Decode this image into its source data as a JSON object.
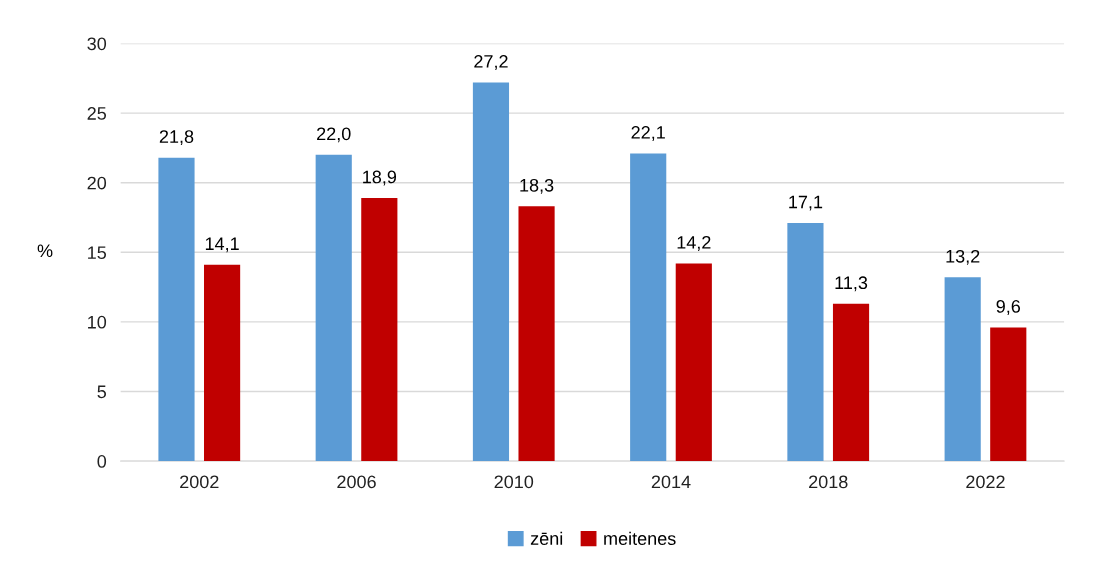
{
  "chart_data": {
    "type": "bar",
    "ylabel": "%",
    "categories": [
      "2002",
      "2006",
      "2010",
      "2014",
      "2018",
      "2022"
    ],
    "series": [
      {
        "name": "zēni",
        "color": "#5b9bd5",
        "values": [
          21.8,
          22.0,
          27.2,
          22.1,
          17.1,
          13.2
        ],
        "value_labels": [
          "21,8",
          "22,0",
          "27,2",
          "22,1",
          "17,1",
          "13,2"
        ]
      },
      {
        "name": "meitenes",
        "color": "#c00000",
        "values": [
          14.1,
          18.9,
          18.3,
          14.2,
          11.3,
          9.6
        ],
        "value_labels": [
          "14,1",
          "18,9",
          "18,3",
          "14,2",
          "11,3",
          "9,6"
        ]
      }
    ],
    "ylim": [
      0,
      30
    ],
    "yticks": [
      0,
      5,
      10,
      15,
      20,
      25,
      30
    ],
    "grid": "y",
    "legend": "bottom"
  }
}
